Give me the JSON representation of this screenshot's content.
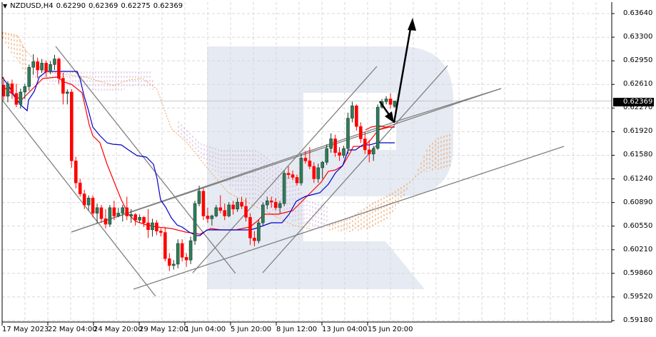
{
  "header": {
    "menu_icon": "triangle-down",
    "symbol": "NZDUSD,H4",
    "open": "0.62290",
    "high": "0.62369",
    "low": "0.62275",
    "close": "0.62369"
  },
  "current_price": "0.62369",
  "colors": {
    "bull": "#2e7d5b",
    "bear": "#ff0000",
    "tenkan": "#ff0000",
    "kijun": "#0000cc",
    "cloud_orange": "#f0a060",
    "cloud_purple": "#d4b8dc",
    "trendline": "#808080",
    "arrow": "#000000",
    "grid": "#d8d8d8",
    "watermark": "#e6eaf2"
  },
  "chart_data": {
    "type": "candlestick",
    "title": "NZDUSD,H4",
    "indicator": "Ichimoku Kinko Hyo",
    "y_ticks": [
      "0.63640",
      "0.63300",
      "0.62950",
      "0.62610",
      "0.62270",
      "0.61920",
      "0.61580",
      "0.61240",
      "0.60890",
      "0.60550",
      "0.60210",
      "0.59860",
      "0.59520",
      "0.59180"
    ],
    "x_ticks": [
      "17 May 2023",
      "22 May 04:00",
      "24 May 20:00",
      "29 May 12:00",
      "1 Jun 04:00",
      "5 Jun 20:00",
      "8 Jun 12:00",
      "13 Jun 04:00",
      "15 Jun 20:00"
    ],
    "ylim": [
      0.5918,
      0.6364
    ],
    "last_close": 0.62369,
    "candles": [
      [
        0.626,
        0.6272,
        0.6238,
        0.6244
      ],
      [
        0.6244,
        0.6266,
        0.6235,
        0.6262
      ],
      [
        0.6262,
        0.6268,
        0.624,
        0.6248
      ],
      [
        0.6248,
        0.6262,
        0.6228,
        0.6232
      ],
      [
        0.6232,
        0.6255,
        0.6226,
        0.625
      ],
      [
        0.625,
        0.6262,
        0.624,
        0.6258
      ],
      [
        0.6258,
        0.629,
        0.6252,
        0.6286
      ],
      [
        0.6286,
        0.6305,
        0.6275,
        0.6294
      ],
      [
        0.6294,
        0.63,
        0.627,
        0.6282
      ],
      [
        0.6282,
        0.6298,
        0.6278,
        0.6292
      ],
      [
        0.6292,
        0.6296,
        0.6272,
        0.628
      ],
      [
        0.628,
        0.6295,
        0.6276,
        0.629
      ],
      [
        0.629,
        0.6304,
        0.6282,
        0.6298
      ],
      [
        0.6298,
        0.63,
        0.6262,
        0.627
      ],
      [
        0.627,
        0.6278,
        0.6232,
        0.6248
      ],
      [
        0.6248,
        0.6254,
        0.6232,
        0.625
      ],
      [
        0.625,
        0.6254,
        0.614,
        0.615
      ],
      [
        0.615,
        0.6156,
        0.611,
        0.6118
      ],
      [
        0.6118,
        0.6124,
        0.6098,
        0.6102
      ],
      [
        0.6102,
        0.6108,
        0.608,
        0.6086
      ],
      [
        0.6086,
        0.61,
        0.6078,
        0.6096
      ],
      [
        0.6096,
        0.61,
        0.6068,
        0.6074
      ],
      [
        0.6074,
        0.6088,
        0.606,
        0.6082
      ],
      [
        0.6082,
        0.6086,
        0.606,
        0.6066
      ],
      [
        0.6066,
        0.608,
        0.6052,
        0.6058
      ],
      [
        0.6058,
        0.6086,
        0.6054,
        0.6082
      ],
      [
        0.6082,
        0.6092,
        0.6064,
        0.607
      ],
      [
        0.607,
        0.6082,
        0.6068,
        0.6074
      ],
      [
        0.6074,
        0.6086,
        0.6062,
        0.6082
      ],
      [
        0.6082,
        0.6098,
        0.6064,
        0.607
      ],
      [
        0.607,
        0.608,
        0.606,
        0.6072
      ],
      [
        0.6072,
        0.6074,
        0.6056,
        0.6064
      ],
      [
        0.6064,
        0.6072,
        0.606,
        0.6068
      ],
      [
        0.6068,
        0.607,
        0.6054,
        0.606
      ],
      [
        0.606,
        0.608,
        0.6038,
        0.605
      ],
      [
        0.605,
        0.6066,
        0.604,
        0.606
      ],
      [
        0.606,
        0.6064,
        0.6042,
        0.6048
      ],
      [
        0.6048,
        0.6052,
        0.604,
        0.6046
      ],
      [
        0.6046,
        0.6054,
        0.6004,
        0.6008
      ],
      [
        0.6008,
        0.6016,
        0.599,
        0.5998
      ],
      [
        0.5998,
        0.6006,
        0.5992,
        0.6
      ],
      [
        0.6,
        0.6036,
        0.5994,
        0.603
      ],
      [
        0.603,
        0.6036,
        0.6004,
        0.601
      ],
      [
        0.601,
        0.6016,
        0.5996,
        0.6006
      ],
      [
        0.6006,
        0.604,
        0.6,
        0.6034
      ],
      [
        0.6034,
        0.6092,
        0.6028,
        0.6088
      ],
      [
        0.6088,
        0.6114,
        0.6084,
        0.6106
      ],
      [
        0.6106,
        0.611,
        0.6064,
        0.607
      ],
      [
        0.607,
        0.6082,
        0.606,
        0.6066
      ],
      [
        0.6066,
        0.6072,
        0.6056,
        0.607
      ],
      [
        0.607,
        0.6086,
        0.6068,
        0.6082
      ],
      [
        0.6082,
        0.61,
        0.6074,
        0.6078
      ],
      [
        0.6078,
        0.6088,
        0.6064,
        0.607
      ],
      [
        0.607,
        0.609,
        0.6068,
        0.6086
      ],
      [
        0.6086,
        0.6092,
        0.6072,
        0.608
      ],
      [
        0.608,
        0.6096,
        0.6076,
        0.609
      ],
      [
        0.609,
        0.6098,
        0.608,
        0.6084
      ],
      [
        0.6084,
        0.6096,
        0.6062,
        0.6068
      ],
      [
        0.6068,
        0.6074,
        0.6028,
        0.6038
      ],
      [
        0.6038,
        0.6048,
        0.6026,
        0.6034
      ],
      [
        0.6034,
        0.6064,
        0.603,
        0.606
      ],
      [
        0.606,
        0.609,
        0.6056,
        0.6086
      ],
      [
        0.6086,
        0.6098,
        0.608,
        0.6092
      ],
      [
        0.6092,
        0.6098,
        0.6082,
        0.609
      ],
      [
        0.609,
        0.6096,
        0.6078,
        0.6082
      ],
      [
        0.6082,
        0.6092,
        0.6074,
        0.6088
      ],
      [
        0.6088,
        0.6136,
        0.6084,
        0.6132
      ],
      [
        0.6132,
        0.6142,
        0.6124,
        0.613
      ],
      [
        0.613,
        0.6136,
        0.6122,
        0.6126
      ],
      [
        0.6126,
        0.613,
        0.6114,
        0.6118
      ],
      [
        0.6118,
        0.616,
        0.6114,
        0.6154
      ],
      [
        0.6154,
        0.6164,
        0.6146,
        0.615
      ],
      [
        0.615,
        0.617,
        0.6138,
        0.6142
      ],
      [
        0.6142,
        0.6148,
        0.6118,
        0.6124
      ],
      [
        0.6124,
        0.6146,
        0.6118,
        0.614
      ],
      [
        0.614,
        0.615,
        0.6124,
        0.6148
      ],
      [
        0.6148,
        0.6174,
        0.6144,
        0.6168
      ],
      [
        0.6168,
        0.619,
        0.6162,
        0.6182
      ],
      [
        0.6182,
        0.6188,
        0.6156,
        0.6162
      ],
      [
        0.6162,
        0.617,
        0.615,
        0.6158
      ],
      [
        0.6158,
        0.6172,
        0.6154,
        0.6168
      ],
      [
        0.6168,
        0.622,
        0.616,
        0.6212
      ],
      [
        0.6212,
        0.6236,
        0.6206,
        0.623
      ],
      [
        0.623,
        0.6232,
        0.6194,
        0.62
      ],
      [
        0.62,
        0.6206,
        0.6176,
        0.6182
      ],
      [
        0.6182,
        0.6192,
        0.616,
        0.6166
      ],
      [
        0.6166,
        0.618,
        0.6148,
        0.616
      ],
      [
        0.616,
        0.6172,
        0.615,
        0.6168
      ],
      [
        0.6168,
        0.6232,
        0.6166,
        0.6228
      ],
      [
        0.6228,
        0.624,
        0.6226,
        0.6236
      ],
      [
        0.6236,
        0.6244,
        0.6232,
        0.624
      ],
      [
        0.624,
        0.6248,
        0.6226,
        0.6232
      ],
      [
        0.6229,
        0.6237,
        0.6227,
        0.6237
      ]
    ]
  },
  "annotations": {
    "current_price_label": "0.62369"
  }
}
